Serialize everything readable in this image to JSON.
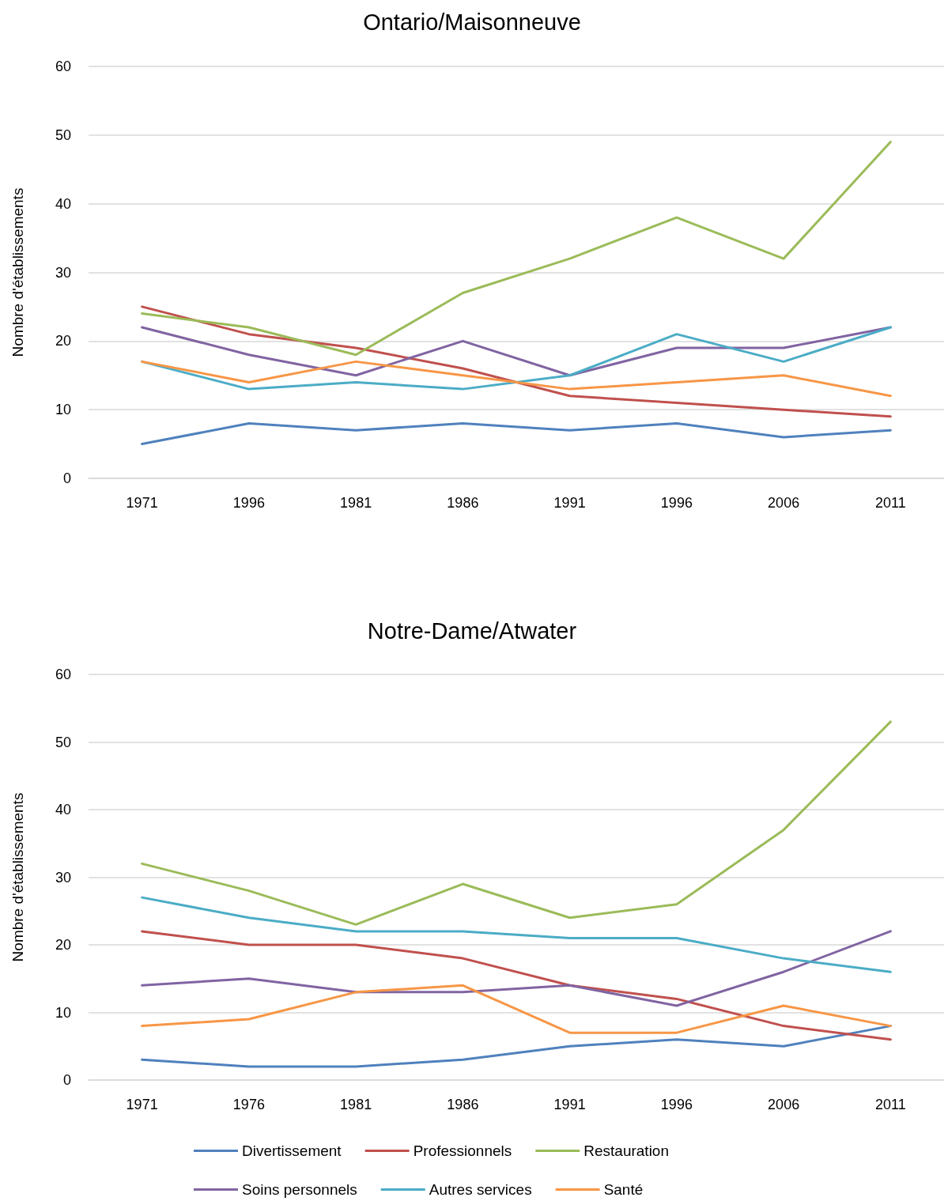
{
  "chart_data": [
    {
      "type": "line",
      "title": "Ontario/Maisonneuve",
      "ylabel": "Nombre d'établissements",
      "categories": [
        "1971",
        "1996",
        "1981",
        "1986",
        "1991",
        "1996",
        "2006",
        "2011"
      ],
      "ylim": [
        0,
        60
      ],
      "yticks": [
        0,
        10,
        20,
        30,
        40,
        50,
        60
      ],
      "grid": "y",
      "legend": false,
      "marker": "none",
      "line_style": "solid",
      "series": [
        {
          "color": "#4f81bd",
          "values": [
            5,
            8,
            7,
            8,
            7,
            8,
            6,
            7
          ]
        },
        {
          "color": "#c0504d",
          "values": [
            25,
            21,
            19,
            16,
            12,
            11,
            10,
            9
          ]
        },
        {
          "color": "#9bbb59",
          "values": [
            24,
            22,
            18,
            27,
            32,
            38,
            32,
            49
          ]
        },
        {
          "color": "#8064a2",
          "values": [
            22,
            18,
            15,
            20,
            15,
            19,
            19,
            22
          ]
        },
        {
          "color": "#4bacc6",
          "values": [
            17,
            13,
            14,
            13,
            15,
            21,
            17,
            22
          ]
        },
        {
          "color": "#f79646",
          "values": [
            17,
            14,
            17,
            15,
            13,
            14,
            15,
            12
          ]
        }
      ]
    },
    {
      "type": "line",
      "title": "Notre-Dame/Atwater",
      "ylabel": "Nombre d'établissements",
      "categories": [
        "1971",
        "1976",
        "1981",
        "1986",
        "1991",
        "1996",
        "2006",
        "2011"
      ],
      "ylim": [
        0,
        60
      ],
      "yticks": [
        0,
        10,
        20,
        30,
        40,
        50,
        60
      ],
      "grid": "y",
      "legend": "bottom",
      "marker": "none",
      "line_style": "solid",
      "series": [
        {
          "name": "Divertissement",
          "color": "#4f81bd",
          "values": [
            3,
            2,
            2,
            3,
            5,
            6,
            5,
            8
          ]
        },
        {
          "name": "Professionnels",
          "color": "#c0504d",
          "values": [
            22,
            20,
            20,
            18,
            14,
            12,
            8,
            6
          ]
        },
        {
          "name": "Restauration",
          "color": "#9bbb59",
          "values": [
            32,
            28,
            23,
            29,
            24,
            26,
            37,
            53
          ]
        },
        {
          "name": "Soins personnels",
          "color": "#8064a2",
          "values": [
            14,
            15,
            13,
            13,
            14,
            11,
            16,
            22
          ]
        },
        {
          "name": "Autres services",
          "color": "#4bacc6",
          "values": [
            27,
            24,
            22,
            22,
            21,
            21,
            18,
            16
          ]
        },
        {
          "name": "Santé",
          "color": "#f79646",
          "values": [
            8,
            9,
            13,
            14,
            7,
            7,
            11,
            8
          ]
        }
      ]
    }
  ]
}
